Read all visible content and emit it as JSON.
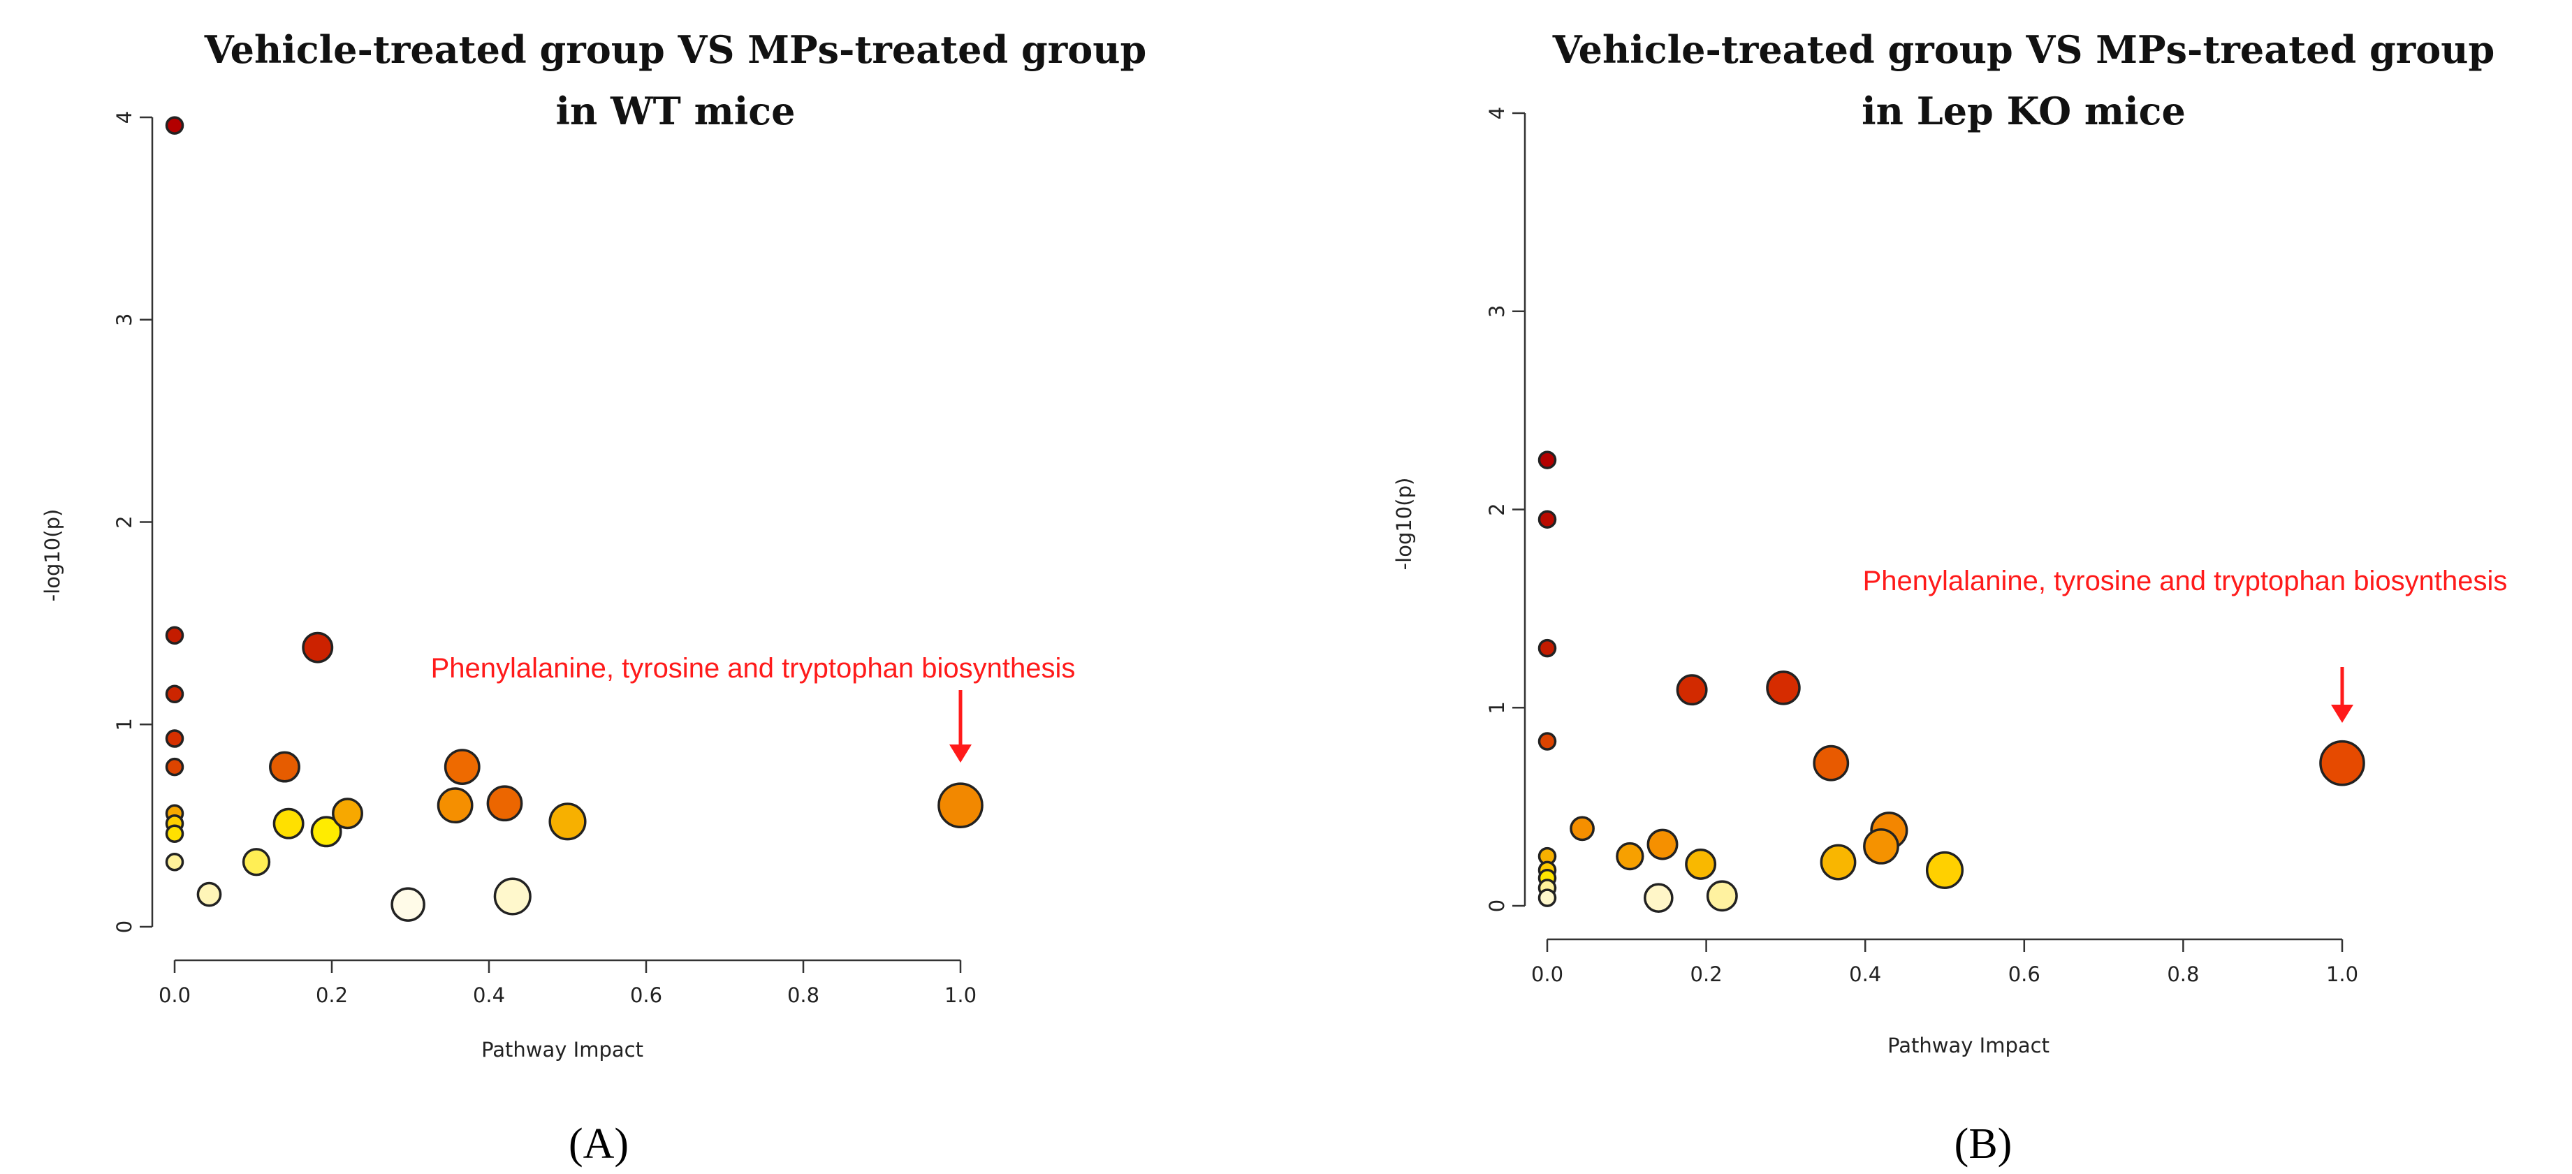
{
  "figure": {
    "panels": [
      {
        "id": "A",
        "label": "(A)",
        "annotation_text": "Phenylalanine, tyrosine and tryptophan biosynthesis",
        "arrow_color": "#ff1a1a"
      },
      {
        "id": "B",
        "label": "(B)",
        "annotation_text": "Phenylalanine, tyrosine and tryptophan biosynthesis",
        "arrow_color": "#ff1a1a"
      }
    ]
  },
  "chart_data": [
    {
      "type": "scatter",
      "title": "Vehicle-treated group  VS MPs-treated group",
      "subtitle": "in WT mice",
      "xlabel": "Pathway Impact",
      "ylabel": "-log10(p)",
      "xlim": [
        0,
        1
      ],
      "ylim": [
        0,
        4
      ],
      "xticks": [
        "0.0",
        "0.2",
        "0.4",
        "0.6",
        "0.8",
        "1.0"
      ],
      "yticks": [
        "0",
        "1",
        "2",
        "3",
        "4"
      ],
      "grid": false,
      "points": [
        {
          "x": 0.0,
          "y": 3.96,
          "r": 1.0,
          "color": "#b30000"
        },
        {
          "x": 0.0,
          "y": 1.44,
          "r": 1.0,
          "color": "#c41c00"
        },
        {
          "x": 0.0,
          "y": 1.15,
          "r": 1.0,
          "color": "#cc2500"
        },
        {
          "x": 0.0,
          "y": 0.93,
          "r": 1.0,
          "color": "#d63000"
        },
        {
          "x": 0.0,
          "y": 0.79,
          "r": 1.0,
          "color": "#dd4400"
        },
        {
          "x": 0.0,
          "y": 0.56,
          "r": 1.0,
          "color": "#f7a800"
        },
        {
          "x": 0.0,
          "y": 0.51,
          "r": 1.0,
          "color": "#ffcf00"
        },
        {
          "x": 0.0,
          "y": 0.46,
          "r": 1.0,
          "color": "#ffe000"
        },
        {
          "x": 0.0,
          "y": 0.32,
          "r": 1.0,
          "color": "#fff29a"
        },
        {
          "x": 0.044,
          "y": 0.16,
          "r": 1.4,
          "color": "#fff5b8"
        },
        {
          "x": 0.104,
          "y": 0.32,
          "r": 1.6,
          "color": "#ffee55"
        },
        {
          "x": 0.14,
          "y": 0.79,
          "r": 1.8,
          "color": "#e65c00"
        },
        {
          "x": 0.145,
          "y": 0.51,
          "r": 1.8,
          "color": "#ffe000"
        },
        {
          "x": 0.182,
          "y": 1.38,
          "r": 1.8,
          "color": "#cc2200"
        },
        {
          "x": 0.193,
          "y": 0.47,
          "r": 1.8,
          "color": "#ffec00"
        },
        {
          "x": 0.22,
          "y": 0.56,
          "r": 1.8,
          "color": "#f7a800"
        },
        {
          "x": 0.297,
          "y": 0.11,
          "r": 2.0,
          "color": "#fffbe8"
        },
        {
          "x": 0.357,
          "y": 0.6,
          "r": 2.1,
          "color": "#f58f00"
        },
        {
          "x": 0.366,
          "y": 0.79,
          "r": 2.1,
          "color": "#ee6a00"
        },
        {
          "x": 0.42,
          "y": 0.61,
          "r": 2.1,
          "color": "#ec6600"
        },
        {
          "x": 0.43,
          "y": 0.15,
          "r": 2.2,
          "color": "#fff8cc"
        },
        {
          "x": 0.5,
          "y": 0.52,
          "r": 2.2,
          "color": "#f7b000"
        },
        {
          "x": 1.0,
          "y": 0.6,
          "r": 2.7,
          "color": "#f28800"
        }
      ],
      "annotation": {
        "x": 1.0,
        "y": 0.6,
        "text": "Phenylalanine, tyrosine and tryptophan biosynthesis"
      }
    },
    {
      "type": "scatter",
      "title": "Vehicle-treated group  VS MPs-treated group",
      "subtitle": "in Lep KO mice",
      "xlabel": "Pathway Impact",
      "ylabel": "-log10(p)",
      "xlim": [
        0,
        1
      ],
      "ylim": [
        0,
        4
      ],
      "xticks": [
        "0.0",
        "0.2",
        "0.4",
        "0.6",
        "0.8",
        "1.0"
      ],
      "yticks": [
        "0",
        "1",
        "2",
        "3",
        "4"
      ],
      "grid": false,
      "points": [
        {
          "x": 0.0,
          "y": 2.25,
          "r": 1.0,
          "color": "#b30000"
        },
        {
          "x": 0.0,
          "y": 1.95,
          "r": 1.0,
          "color": "#ba0a00"
        },
        {
          "x": 0.0,
          "y": 1.3,
          "r": 1.0,
          "color": "#c41c00"
        },
        {
          "x": 0.0,
          "y": 0.83,
          "r": 1.0,
          "color": "#dd4400"
        },
        {
          "x": 0.0,
          "y": 0.25,
          "r": 1.0,
          "color": "#f7b000"
        },
        {
          "x": 0.0,
          "y": 0.18,
          "r": 1.0,
          "color": "#ffcc00"
        },
        {
          "x": 0.0,
          "y": 0.14,
          "r": 1.0,
          "color": "#ffe500"
        },
        {
          "x": 0.0,
          "y": 0.09,
          "r": 1.0,
          "color": "#fff29a"
        },
        {
          "x": 0.0,
          "y": 0.04,
          "r": 1.0,
          "color": "#fff8cc"
        },
        {
          "x": 0.044,
          "y": 0.39,
          "r": 1.4,
          "color": "#f58f00"
        },
        {
          "x": 0.104,
          "y": 0.25,
          "r": 1.6,
          "color": "#f7a000"
        },
        {
          "x": 0.14,
          "y": 0.04,
          "r": 1.7,
          "color": "#fff6c8"
        },
        {
          "x": 0.145,
          "y": 0.31,
          "r": 1.8,
          "color": "#f59000"
        },
        {
          "x": 0.182,
          "y": 1.09,
          "r": 1.8,
          "color": "#d22a00"
        },
        {
          "x": 0.193,
          "y": 0.21,
          "r": 1.8,
          "color": "#f9b800"
        },
        {
          "x": 0.22,
          "y": 0.05,
          "r": 1.8,
          "color": "#fff2a0"
        },
        {
          "x": 0.297,
          "y": 1.1,
          "r": 2.0,
          "color": "#d62c00"
        },
        {
          "x": 0.357,
          "y": 0.72,
          "r": 2.1,
          "color": "#e85a00"
        },
        {
          "x": 0.366,
          "y": 0.22,
          "r": 2.1,
          "color": "#f9b600"
        },
        {
          "x": 0.42,
          "y": 0.3,
          "r": 2.1,
          "color": "#f59200"
        },
        {
          "x": 0.43,
          "y": 0.38,
          "r": 2.2,
          "color": "#f38600"
        },
        {
          "x": 0.5,
          "y": 0.18,
          "r": 2.2,
          "color": "#ffd000"
        },
        {
          "x": 1.0,
          "y": 0.72,
          "r": 2.7,
          "color": "#e64a00"
        }
      ],
      "annotation": {
        "x": 1.0,
        "y": 0.72,
        "text": "Phenylalanine, tyrosine and tryptophan biosynthesis"
      }
    }
  ]
}
